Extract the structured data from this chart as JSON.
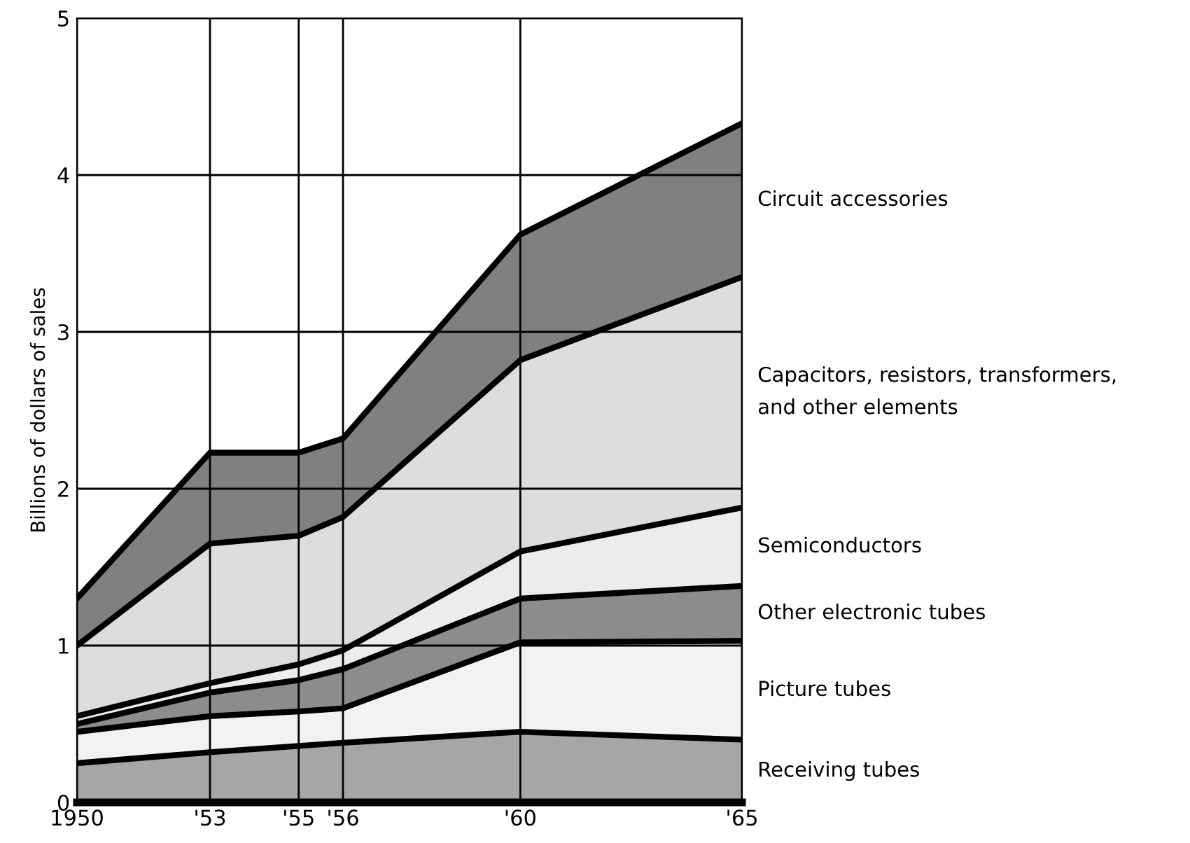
{
  "chart_data": {
    "type": "area",
    "stacked": true,
    "ylabel": "Billions of dollars of sales",
    "x": [
      1950,
      1953,
      1955,
      1956,
      1960,
      1965
    ],
    "xlim": [
      1950,
      1965
    ],
    "xticks": [
      {
        "value": 1950,
        "label": "1950"
      },
      {
        "value": 1953,
        "label": "'53"
      },
      {
        "value": 1955,
        "label": "'55"
      },
      {
        "value": 1956,
        "label": "'56"
      },
      {
        "value": 1960,
        "label": "'60"
      },
      {
        "value": 1965,
        "label": "'65"
      }
    ],
    "ylim": [
      0,
      5
    ],
    "yticks": [
      0,
      1,
      2,
      3,
      4,
      5
    ],
    "grid": true,
    "legend": false,
    "series": [
      {
        "name": "Receiving tubes",
        "color": "#a6a6a6",
        "values": [
          0.25,
          0.32,
          0.36,
          0.38,
          0.45,
          0.4
        ]
      },
      {
        "name": "Picture tubes",
        "color": "#f2f2f2",
        "values": [
          0.2,
          0.23,
          0.22,
          0.22,
          0.57,
          0.63
        ]
      },
      {
        "name": "Other electronic tubes",
        "color": "#8c8c8c",
        "values": [
          0.05,
          0.15,
          0.2,
          0.25,
          0.28,
          0.35
        ]
      },
      {
        "name": "Semiconductors",
        "color": "#ececec",
        "values": [
          0.05,
          0.06,
          0.1,
          0.12,
          0.3,
          0.5
        ]
      },
      {
        "name": "Capacitors, resistors, transformers,\nand other elements",
        "color": "#dddddd",
        "values": [
          0.45,
          0.89,
          0.82,
          0.85,
          1.22,
          1.47
        ]
      },
      {
        "name": "Circuit accessories",
        "color": "#808080",
        "values": [
          0.3,
          0.58,
          0.53,
          0.5,
          0.8,
          0.98
        ]
      }
    ]
  }
}
